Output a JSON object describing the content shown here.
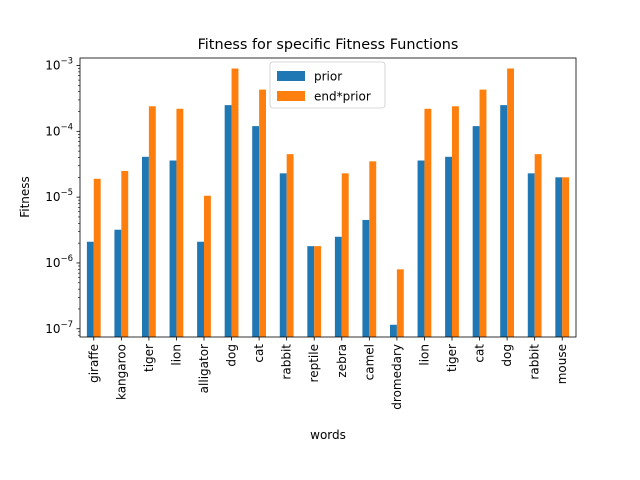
{
  "chart_data": {
    "type": "bar",
    "title": "Fitness for specific Fitness Functions",
    "xlabel": "words",
    "ylabel": "Fitness",
    "yscale": "log",
    "ylim": [
      7.5e-08,
      0.0013
    ],
    "yticks": [
      {
        "value": 1e-07,
        "base": "10",
        "exp": "−7"
      },
      {
        "value": 1e-06,
        "base": "10",
        "exp": "−6"
      },
      {
        "value": 1e-05,
        "base": "10",
        "exp": "−5"
      },
      {
        "value": 0.0001,
        "base": "10",
        "exp": "−4"
      },
      {
        "value": 0.001,
        "base": "10",
        "exp": "−3"
      }
    ],
    "categories": [
      "giraffe",
      "kangaroo",
      "tiger",
      "lion",
      "alligator",
      "dog",
      "cat",
      "rabbit",
      "reptile",
      "zebra",
      "camel",
      "dromedary",
      "lion",
      "tiger",
      "cat",
      "dog",
      "rabbit",
      "mouse"
    ],
    "series": [
      {
        "name": "prior",
        "color": "#1f77b4",
        "values": [
          2.1e-06,
          3.2e-06,
          4.1e-05,
          3.6e-05,
          2.1e-06,
          0.00025,
          0.00012,
          2.3e-05,
          1.8e-06,
          2.5e-06,
          4.5e-06,
          1.15e-07,
          3.6e-05,
          4.1e-05,
          0.00012,
          0.00025,
          2.3e-05,
          2e-05
        ]
      },
      {
        "name": "end*prior",
        "color": "#ff7f0e",
        "values": [
          1.9e-05,
          2.5e-05,
          0.00024,
          0.00022,
          1.05e-05,
          0.0009,
          0.00043,
          4.5e-05,
          1.8e-06,
          2.3e-05,
          3.5e-05,
          8e-07,
          0.00022,
          0.00024,
          0.00043,
          0.0009,
          4.5e-05,
          2e-05
        ]
      }
    ],
    "grid": false,
    "legend_position": "top-center"
  }
}
